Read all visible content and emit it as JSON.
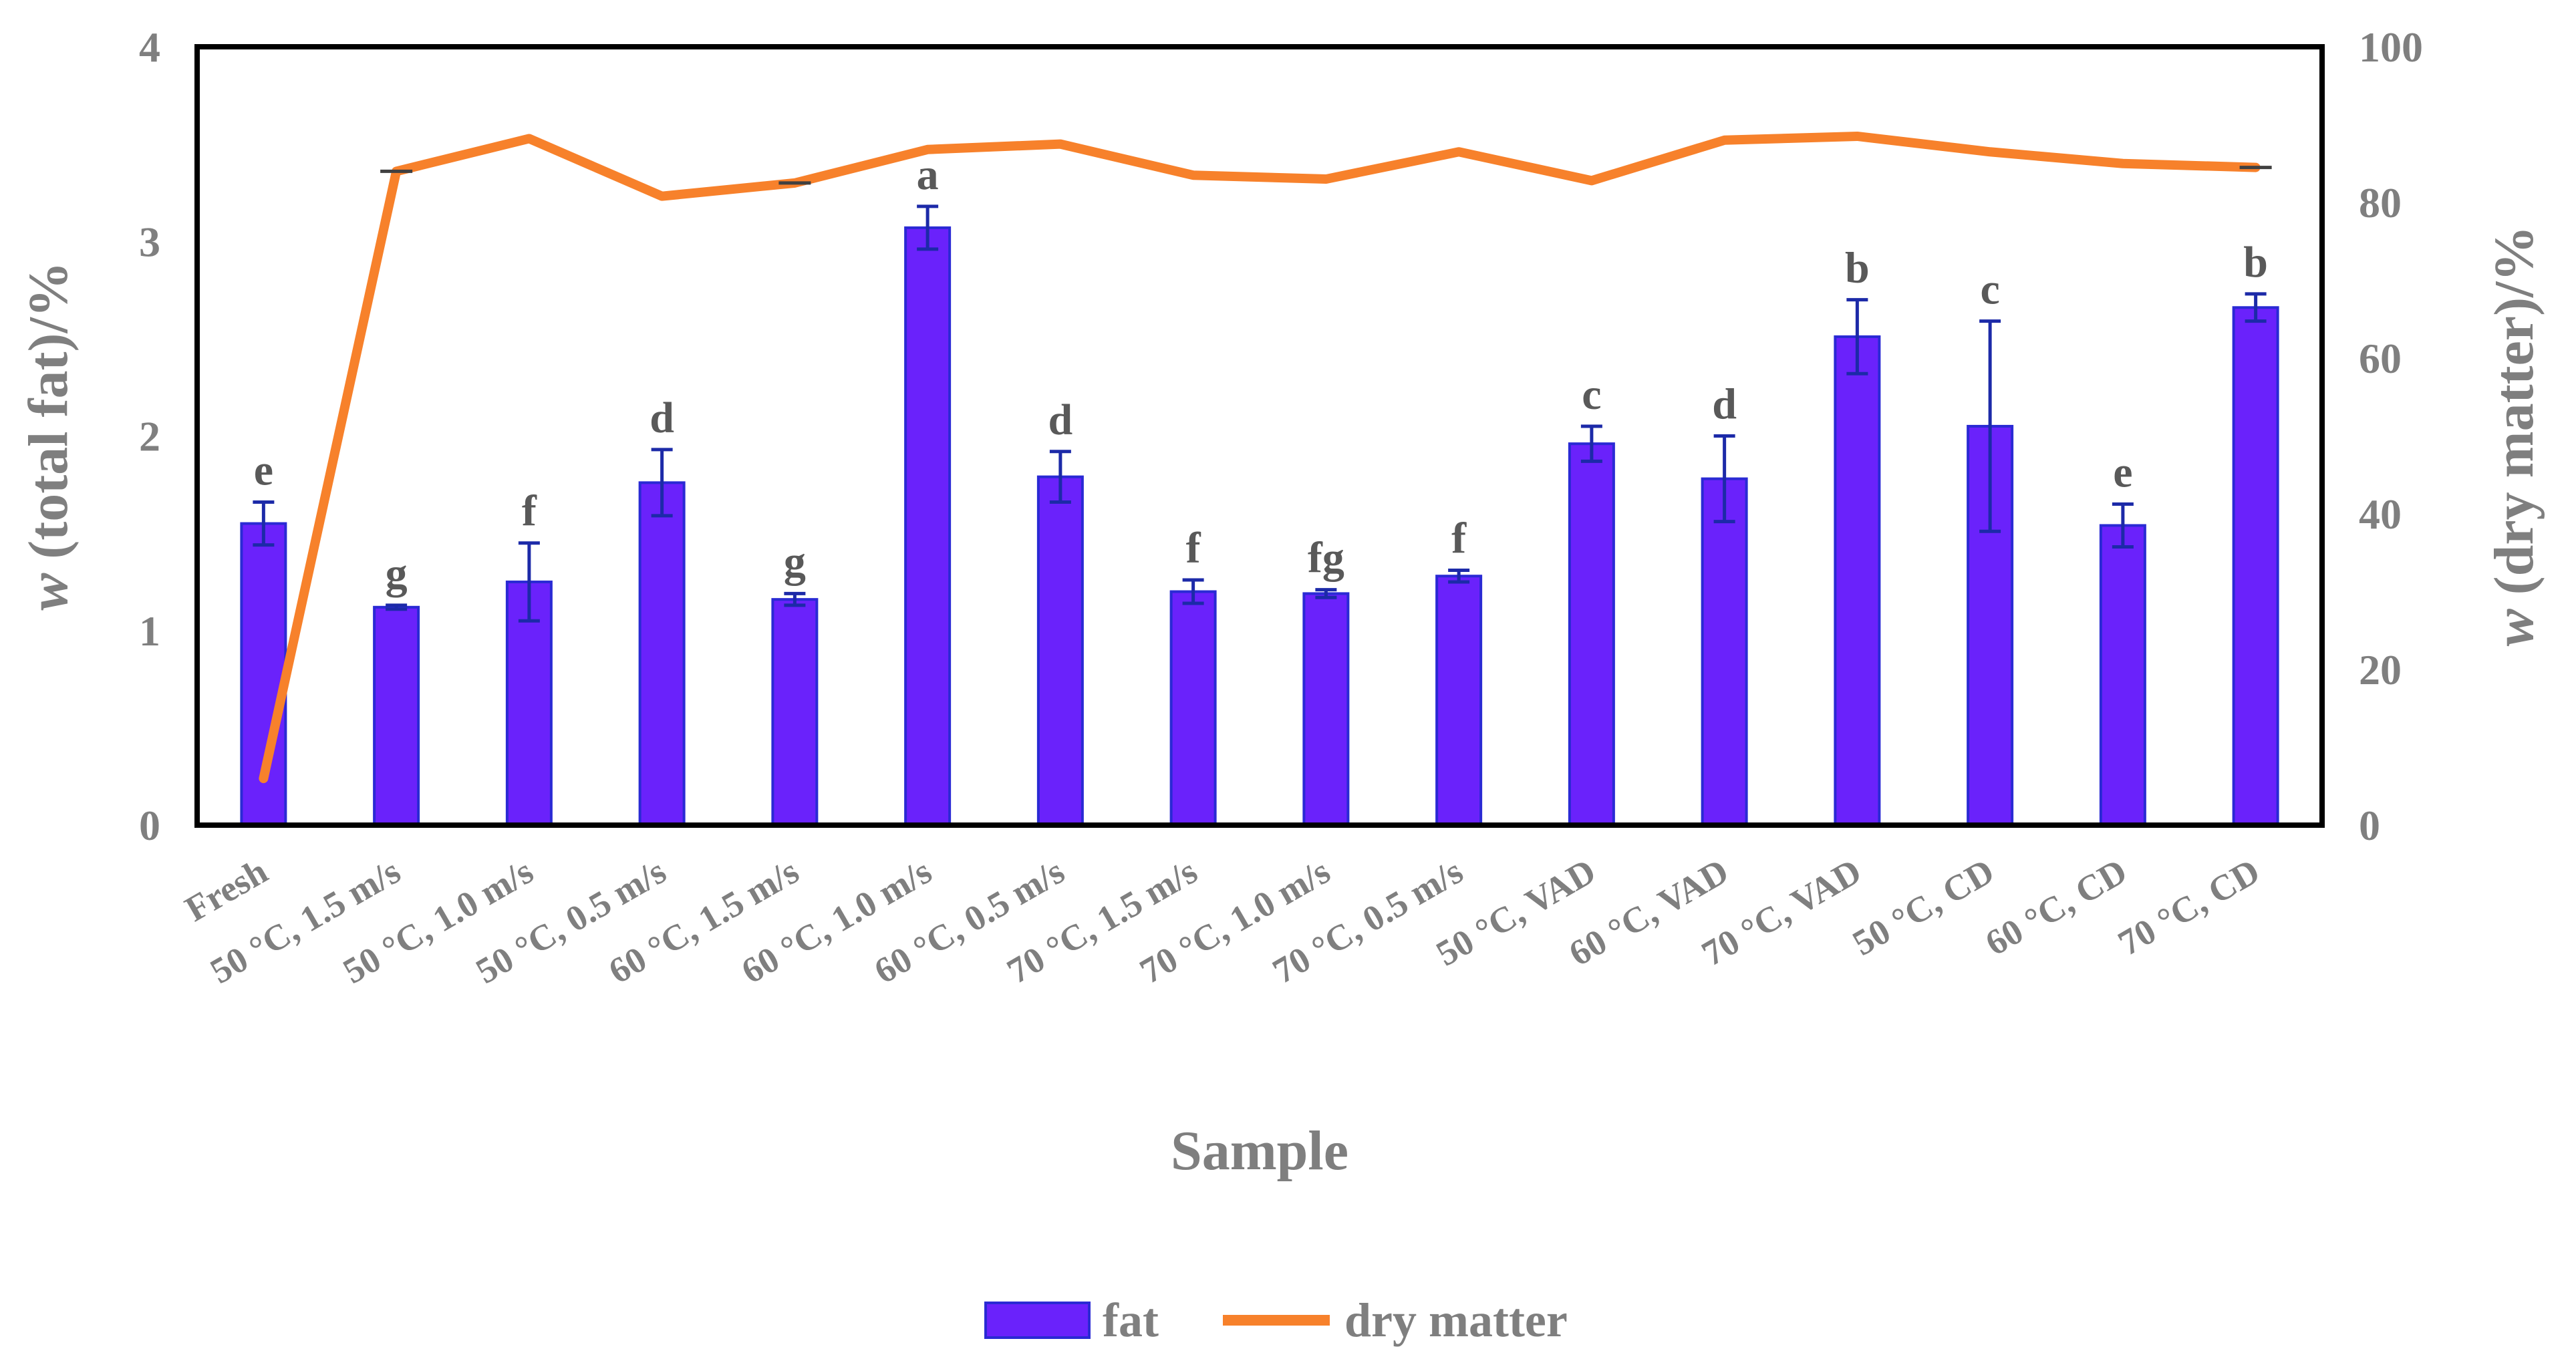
{
  "chart_data": {
    "type": "bar",
    "categories": [
      "Fresh",
      "50 °C, 1.5 m/s",
      "50 °C, 1.0 m/s",
      "50 °C, 0.5 m/s",
      "60 °C, 1.5 m/s",
      "60 °C, 1.0 m/s",
      "60 °C, 0.5 m/s",
      "70 °C, 1.5 m/s",
      "70 °C, 1.0 m/s",
      "70 °C, 0.5 m/s",
      "50 °C, VAD",
      "60 °C, VAD",
      "70 °C, VAD",
      "50 °C, CD",
      "60 °C, CD",
      "70 °C, CD"
    ],
    "series": [
      {
        "name": "fat",
        "axis": "left",
        "values": [
          1.55,
          1.12,
          1.25,
          1.76,
          1.16,
          3.07,
          1.79,
          1.2,
          1.19,
          1.28,
          1.96,
          1.78,
          2.51,
          2.05,
          1.54,
          2.66
        ],
        "errors": [
          0.11,
          0.01,
          0.2,
          0.17,
          0.03,
          0.11,
          0.13,
          0.06,
          0.02,
          0.03,
          0.09,
          0.22,
          0.19,
          0.54,
          0.11,
          0.07
        ],
        "significance": [
          "e",
          "g",
          "f",
          "d",
          "g",
          "a",
          "d",
          "f",
          "fg",
          "f",
          "c",
          "d",
          "b",
          "c",
          "e",
          "b"
        ]
      },
      {
        "name": "dry matter",
        "axis": "right",
        "values": [
          6,
          84,
          88.2,
          80.8,
          82.5,
          86.8,
          87.5,
          83.5,
          83,
          86.5,
          82.8,
          88,
          88.5,
          86.5,
          85,
          84.5
        ],
        "errors": [
          0,
          0.3,
          0,
          0,
          0.3,
          0,
          0,
          0,
          0,
          0,
          0,
          0,
          0,
          0,
          0,
          0.3
        ]
      }
    ],
    "xlabel": "Sample",
    "ylabel_prefix": "w",
    "ylabel_suffix": " (total fat)/%",
    "y2label_prefix": "w",
    "y2label_suffix": " (dry matter)/%",
    "ylim": [
      0,
      4
    ],
    "yticks": [
      "0",
      "1",
      "2",
      "3",
      "4"
    ],
    "y2lim": [
      0,
      100
    ],
    "y2ticks": [
      "0",
      "20",
      "40",
      "60",
      "80",
      "100"
    ],
    "grid": false,
    "legend_position": "bottom-center",
    "colors": {
      "bar_fill": "#6a22fb",
      "bar_edge": "#2a2ad4",
      "error_bar": "#1c2aa8",
      "line": "#f7812b",
      "axis_text": "#7f7f7f",
      "significance_text": "#595959"
    }
  }
}
